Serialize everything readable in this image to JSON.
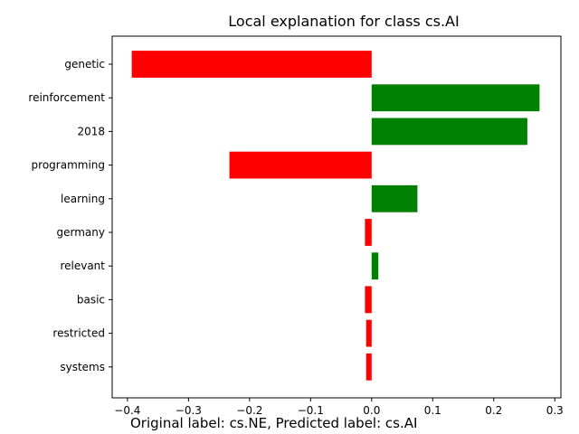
{
  "chart_data": {
    "type": "bar",
    "orientation": "horizontal",
    "title": "Local explanation for class cs.AI",
    "categories": [
      "genetic",
      "reinforcement",
      "2018",
      "programming",
      "learning",
      "germany",
      "relevant",
      "basic",
      "restricted",
      "systems"
    ],
    "values": [
      -0.393,
      0.275,
      0.255,
      -0.233,
      0.075,
      -0.011,
      0.011,
      -0.011,
      -0.009,
      -0.009
    ],
    "xlim": [
      -0.425,
      0.31
    ],
    "x_ticks": [
      -0.4,
      -0.3,
      -0.2,
      -0.1,
      0.0,
      0.1,
      0.2,
      0.3
    ],
    "x_tick_labels": [
      "−0.4",
      "−0.3",
      "−0.2",
      "−0.1",
      "0.0",
      "0.1",
      "0.2",
      "0.3"
    ],
    "grid": false,
    "colors": {
      "positive": "#008000",
      "negative": "#ff0000"
    }
  },
  "caption": "Original label: cs.NE, Predicted label: cs.AI"
}
